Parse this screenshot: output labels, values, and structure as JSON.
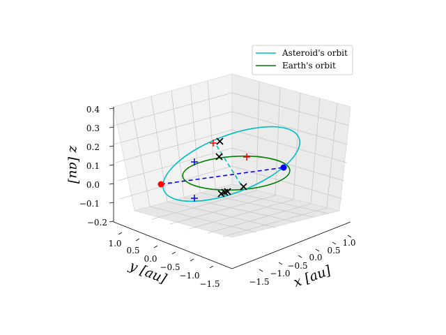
{
  "chart_data": {
    "type": "line",
    "projection": "3d",
    "xlabel": "x [au]",
    "ylabel": "y [au]",
    "zlabel": "z [au]",
    "xlim": [
      -1.7,
      1.2
    ],
    "ylim": [
      -1.7,
      1.2
    ],
    "zlim": [
      -0.2,
      0.4
    ],
    "x_ticks": [
      "−1.5",
      "−1.0",
      "−0.5",
      "0.0",
      "0.5",
      "1.0"
    ],
    "y_ticks": [
      "1.0",
      "0.5",
      "0.0",
      "−0.5",
      "−1.0",
      "−1.5"
    ],
    "z_ticks": [
      "0.4",
      "0.3",
      "0.2",
      "0.1",
      "0.0",
      "−0.1",
      "−0.2"
    ],
    "grid": true,
    "legend_position": "top-right",
    "series": [
      {
        "name": "Asteroid's orbit",
        "color": "#00bfbf",
        "shape": "inclined ellipse",
        "a": 1.35,
        "e": 0.3,
        "inclination_deg": 10
      },
      {
        "name": "Earth's orbit",
        "color": "#008000",
        "shape": "circle",
        "radius": 1.0,
        "z": 0.0
      }
    ],
    "markers": [
      {
        "symbol": "dot",
        "color": "#ff0000",
        "x": -1.0,
        "y": 0.45,
        "z": 0.0
      },
      {
        "symbol": "dot",
        "color": "#0000ff",
        "x": 0.9,
        "y": -0.5,
        "z": 0.0
      },
      {
        "symbol": "plus",
        "color": "#ff0000",
        "x": -0.25,
        "y": 0.85,
        "z": 0.15
      },
      {
        "symbol": "plus",
        "color": "#ff0000",
        "x": 0.55,
        "y": -0.2,
        "z": 0.05
      },
      {
        "symbol": "plus",
        "color": "#0000ff",
        "x": -0.75,
        "y": 0.55,
        "z": 0.1
      },
      {
        "symbol": "plus",
        "color": "#0000ff",
        "x": -0.55,
        "y": -0.3,
        "z": -0.1
      },
      {
        "symbol": "cross",
        "color": "#000000",
        "x": -0.15,
        "y": 0.85,
        "z": 0.15
      },
      {
        "symbol": "cross",
        "color": "#000000",
        "x": -0.15,
        "y": 0.75,
        "z": 0.08
      },
      {
        "symbol": "cross",
        "color": "#000000",
        "x": -0.1,
        "y": -0.3,
        "z": -0.12
      },
      {
        "symbol": "cross",
        "color": "#000000",
        "x": -0.05,
        "y": -0.35,
        "z": -0.12
      },
      {
        "symbol": "cross",
        "color": "#000000",
        "x": 0.0,
        "y": -0.4,
        "z": -0.12
      },
      {
        "symbol": "cross",
        "color": "#000000",
        "x": 0.3,
        "y": -0.6,
        "z": -0.1
      }
    ],
    "connector_lines": [
      {
        "color": "#0000ff",
        "style": "dashed",
        "from": [
          -1.0,
          0.45,
          0.0
        ],
        "to": [
          0.9,
          -0.5,
          0.0
        ]
      },
      {
        "color": "#00bfbf",
        "style": "dashed",
        "from": [
          -0.2,
          0.8,
          0.12
        ],
        "to": [
          0.2,
          -0.5,
          -0.05
        ]
      }
    ]
  }
}
